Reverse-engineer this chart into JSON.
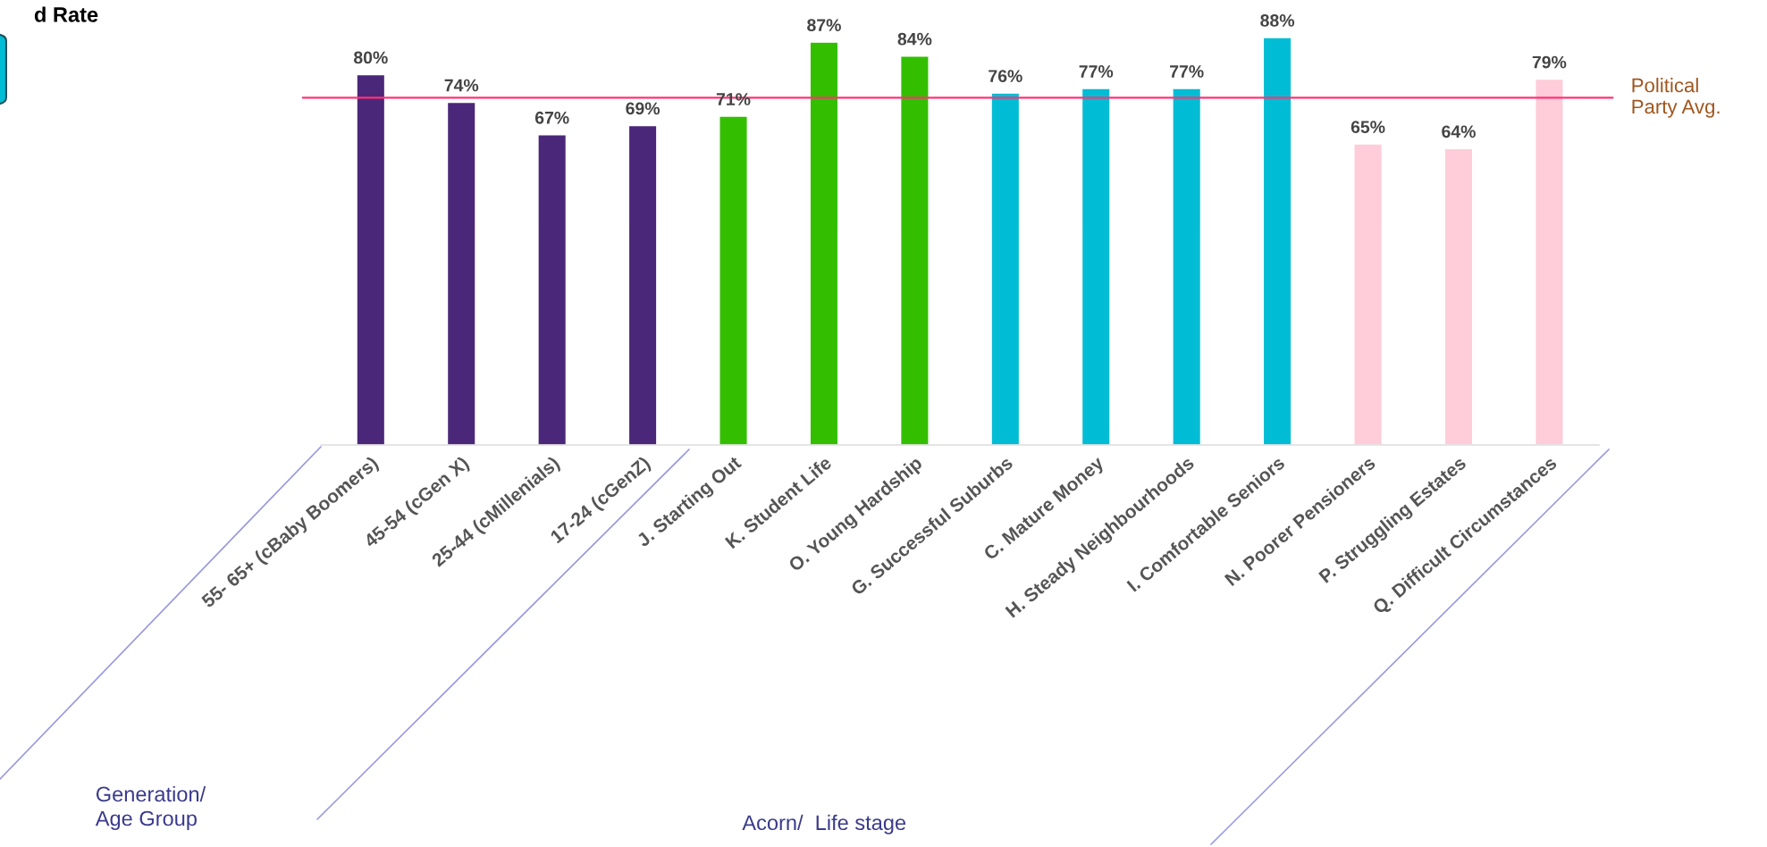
{
  "chart_data": {
    "type": "bar",
    "title": "d Rate",
    "categories": [
      "55- 65+ (cBaby Boomers)",
      "45-54 (cGen X)",
      "25-44 (cMillenials)",
      "17-24 (cGenZ)",
      "J. Starting Out",
      "K. Student Life",
      "O. Young Hardship",
      "G. Successful Suburbs",
      "C. Mature Money",
      "H. Steady Neighbourhoods",
      "I. Comfortable Seniors",
      "N. Poorer Pensioners",
      "P. Struggling Estates",
      "Q. Difficult Circumstances"
    ],
    "values": [
      80,
      74,
      67,
      69,
      71,
      87,
      84,
      76,
      77,
      77,
      88,
      65,
      64,
      79
    ],
    "colors": [
      "#4b2779",
      "#4b2779",
      "#4b2779",
      "#4b2779",
      "#33bf00",
      "#33bf00",
      "#33bf00",
      "#00bcd4",
      "#00bcd4",
      "#00bcd4",
      "#00bcd4",
      "#ffccd9",
      "#ffccd9",
      "#ffccd9"
    ],
    "value_labels": [
      "80%",
      "74%",
      "67%",
      "69%",
      "71%",
      "87%",
      "84%",
      "76%",
      "77%",
      "77%",
      "88%",
      "65%",
      "64%",
      "79%"
    ],
    "tick_labels": "x",
    "ref_lines": [
      {
        "axis": "y",
        "value": 75,
        "label": "Political\nParty Avg.",
        "color": "#ff3377"
      }
    ],
    "annotations": [
      "Generation/\nAge Group",
      "Acorn/  Life stage"
    ],
    "grid": false,
    "legend": false
  }
}
